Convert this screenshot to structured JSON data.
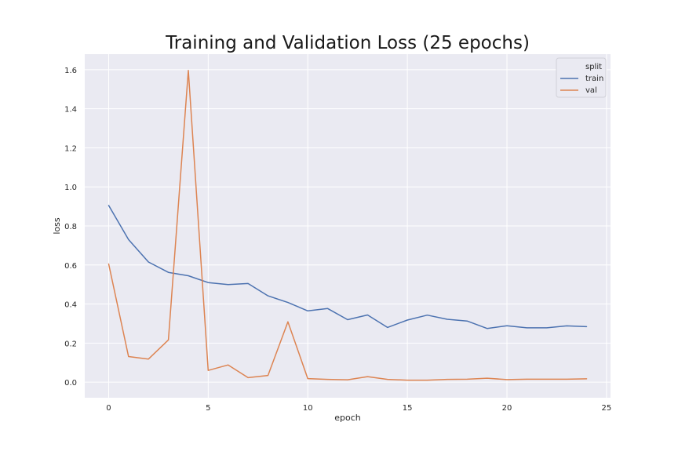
{
  "chart_data": {
    "type": "line",
    "title": "Training and Validation Loss (25 epochs)",
    "xlabel": "epoch",
    "ylabel": "loss",
    "xlim": [
      -1.2,
      25.2
    ],
    "ylim": [
      -0.08,
      1.68
    ],
    "xticks": [
      0,
      5,
      10,
      15,
      20,
      25
    ],
    "yticks": [
      0.0,
      0.2,
      0.4,
      0.6,
      0.8,
      1.0,
      1.2,
      1.4,
      1.6
    ],
    "xtick_labels": [
      "0",
      "5",
      "10",
      "15",
      "20",
      "25"
    ],
    "ytick_labels": [
      "0.0",
      "0.2",
      "0.4",
      "0.6",
      "0.8",
      "1.0",
      "1.2",
      "1.4",
      "1.6"
    ],
    "grid": true,
    "legend": {
      "title": "split",
      "placement": "top-right"
    },
    "x": [
      0,
      1,
      2,
      3,
      4,
      5,
      6,
      7,
      8,
      9,
      10,
      11,
      12,
      13,
      14,
      15,
      16,
      17,
      18,
      19,
      20,
      21,
      22,
      23,
      24
    ],
    "series": [
      {
        "name": "train",
        "color": "#4c72b0",
        "values": [
          0.905,
          0.73,
          0.615,
          0.562,
          0.545,
          0.51,
          0.5,
          0.505,
          0.442,
          0.408,
          0.365,
          0.377,
          0.32,
          0.344,
          0.28,
          0.318,
          0.343,
          0.322,
          0.313,
          0.275,
          0.289,
          0.278,
          0.278,
          0.288,
          0.284
        ]
      },
      {
        "name": "val",
        "color": "#dd8452",
        "values": [
          0.605,
          0.131,
          0.118,
          0.216,
          1.597,
          0.06,
          0.088,
          0.023,
          0.034,
          0.309,
          0.018,
          0.014,
          0.012,
          0.028,
          0.014,
          0.01,
          0.01,
          0.014,
          0.015,
          0.02,
          0.013,
          0.015,
          0.015,
          0.015,
          0.017
        ]
      }
    ]
  }
}
